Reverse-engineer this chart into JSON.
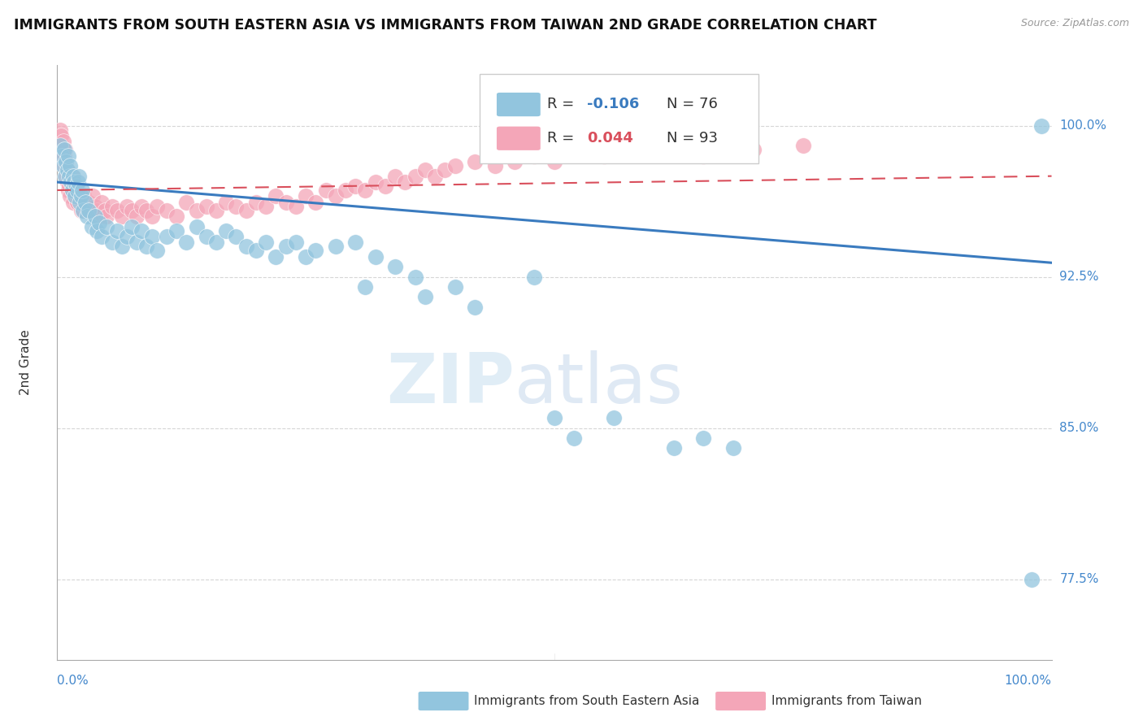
{
  "title": "IMMIGRANTS FROM SOUTH EASTERN ASIA VS IMMIGRANTS FROM TAIWAN 2ND GRADE CORRELATION CHART",
  "source": "Source: ZipAtlas.com",
  "ylabel": "2nd Grade",
  "watermark": "ZIPatlas",
  "xlim": [
    0.0,
    1.0
  ],
  "ylim": [
    0.735,
    1.03
  ],
  "yticks": [
    0.775,
    0.85,
    0.925,
    1.0
  ],
  "ytick_labels": [
    "77.5%",
    "85.0%",
    "92.5%",
    "100.0%"
  ],
  "blue_R": -0.106,
  "blue_N": 76,
  "pink_R": 0.044,
  "pink_N": 93,
  "blue_label": "Immigrants from South Eastern Asia",
  "pink_label": "Immigrants from Taiwan",
  "blue_color": "#92c5de",
  "pink_color": "#f4a6b8",
  "blue_line_color": "#3a7bbf",
  "pink_line_color": "#d94f5c",
  "grid_color": "#cccccc",
  "blue_line_y0": 0.972,
  "blue_line_y1": 0.932,
  "pink_line_y0": 0.968,
  "pink_line_y1": 0.975,
  "blue_x": [
    0.003,
    0.005,
    0.006,
    0.007,
    0.008,
    0.009,
    0.01,
    0.011,
    0.012,
    0.013,
    0.014,
    0.015,
    0.016,
    0.017,
    0.018,
    0.019,
    0.02,
    0.021,
    0.022,
    0.023,
    0.024,
    0.025,
    0.026,
    0.028,
    0.03,
    0.032,
    0.035,
    0.038,
    0.04,
    0.042,
    0.045,
    0.05,
    0.055,
    0.06,
    0.065,
    0.07,
    0.075,
    0.08,
    0.085,
    0.09,
    0.095,
    0.1,
    0.11,
    0.12,
    0.13,
    0.14,
    0.15,
    0.16,
    0.17,
    0.18,
    0.19,
    0.2,
    0.21,
    0.22,
    0.23,
    0.24,
    0.25,
    0.26,
    0.28,
    0.3,
    0.31,
    0.32,
    0.34,
    0.36,
    0.37,
    0.4,
    0.42,
    0.48,
    0.5,
    0.52,
    0.56,
    0.62,
    0.65,
    0.68,
    0.98,
    0.99
  ],
  "blue_y": [
    0.99,
    0.985,
    0.98,
    0.988,
    0.975,
    0.982,
    0.978,
    0.985,
    0.975,
    0.98,
    0.972,
    0.968,
    0.975,
    0.972,
    0.965,
    0.97,
    0.968,
    0.972,
    0.975,
    0.962,
    0.965,
    0.968,
    0.958,
    0.962,
    0.955,
    0.958,
    0.95,
    0.955,
    0.948,
    0.952,
    0.945,
    0.95,
    0.942,
    0.948,
    0.94,
    0.945,
    0.95,
    0.942,
    0.948,
    0.94,
    0.945,
    0.938,
    0.945,
    0.948,
    0.942,
    0.95,
    0.945,
    0.942,
    0.948,
    0.945,
    0.94,
    0.938,
    0.942,
    0.935,
    0.94,
    0.942,
    0.935,
    0.938,
    0.94,
    0.942,
    0.92,
    0.935,
    0.93,
    0.925,
    0.915,
    0.92,
    0.91,
    0.925,
    0.855,
    0.845,
    0.855,
    0.84,
    0.845,
    0.84,
    0.775,
    1.0
  ],
  "pink_x": [
    0.003,
    0.004,
    0.005,
    0.005,
    0.006,
    0.006,
    0.007,
    0.007,
    0.008,
    0.008,
    0.009,
    0.009,
    0.01,
    0.01,
    0.011,
    0.012,
    0.012,
    0.013,
    0.014,
    0.015,
    0.015,
    0.016,
    0.017,
    0.018,
    0.019,
    0.02,
    0.021,
    0.022,
    0.024,
    0.025,
    0.026,
    0.027,
    0.028,
    0.03,
    0.032,
    0.034,
    0.036,
    0.038,
    0.04,
    0.042,
    0.045,
    0.048,
    0.05,
    0.055,
    0.06,
    0.065,
    0.07,
    0.075,
    0.08,
    0.085,
    0.09,
    0.095,
    0.1,
    0.11,
    0.12,
    0.13,
    0.14,
    0.15,
    0.16,
    0.17,
    0.18,
    0.19,
    0.2,
    0.21,
    0.22,
    0.23,
    0.24,
    0.25,
    0.26,
    0.27,
    0.28,
    0.29,
    0.3,
    0.31,
    0.32,
    0.33,
    0.34,
    0.35,
    0.36,
    0.37,
    0.38,
    0.39,
    0.4,
    0.42,
    0.44,
    0.46,
    0.48,
    0.5,
    0.55,
    0.6,
    0.65,
    0.7,
    0.75
  ],
  "pink_y": [
    0.998,
    0.995,
    0.99,
    0.985,
    0.992,
    0.988,
    0.985,
    0.98,
    0.988,
    0.982,
    0.975,
    0.98,
    0.972,
    0.978,
    0.968,
    0.975,
    0.97,
    0.965,
    0.972,
    0.968,
    0.975,
    0.962,
    0.968,
    0.965,
    0.97,
    0.962,
    0.968,
    0.965,
    0.958,
    0.962,
    0.958,
    0.965,
    0.96,
    0.958,
    0.962,
    0.958,
    0.965,
    0.96,
    0.958,
    0.955,
    0.962,
    0.958,
    0.955,
    0.96,
    0.958,
    0.955,
    0.96,
    0.958,
    0.955,
    0.96,
    0.958,
    0.955,
    0.96,
    0.958,
    0.955,
    0.962,
    0.958,
    0.96,
    0.958,
    0.962,
    0.96,
    0.958,
    0.962,
    0.96,
    0.965,
    0.962,
    0.96,
    0.965,
    0.962,
    0.968,
    0.965,
    0.968,
    0.97,
    0.968,
    0.972,
    0.97,
    0.975,
    0.972,
    0.975,
    0.978,
    0.975,
    0.978,
    0.98,
    0.982,
    0.98,
    0.982,
    0.985,
    0.982,
    0.985,
    0.988,
    0.985,
    0.988,
    0.99
  ]
}
